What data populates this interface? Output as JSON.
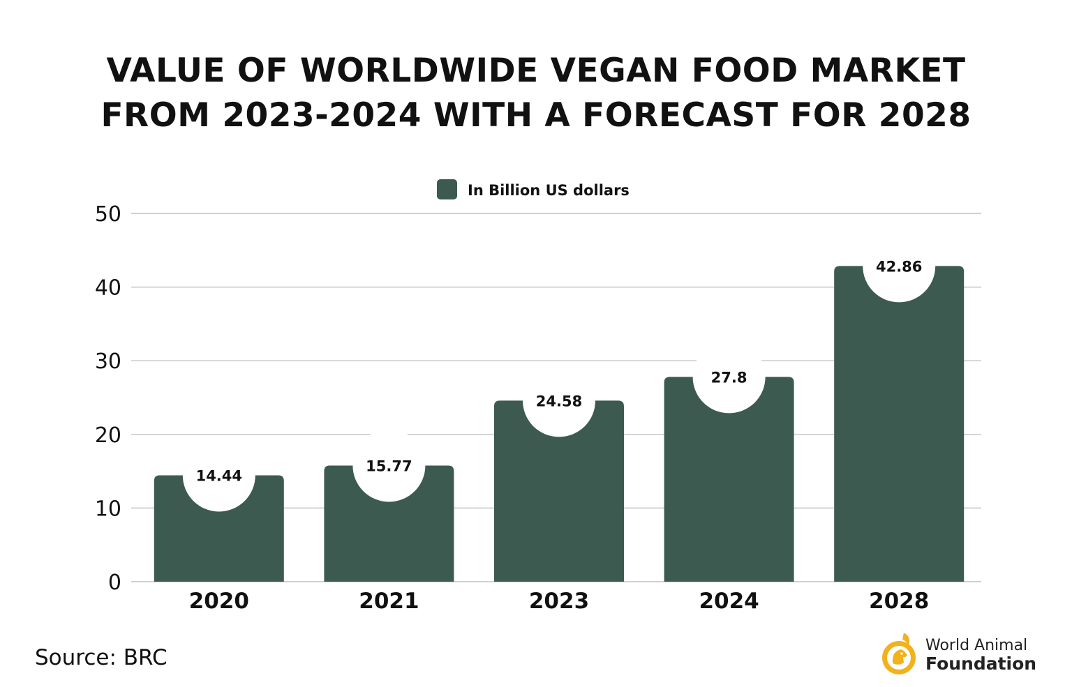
{
  "title_line1": "VALUE OF WORLDWIDE VEGAN FOOD MARKET",
  "title_line2": "FROM 2023-2024 WITH A FORECAST FOR 2028",
  "source": "Source: BRC",
  "brand": {
    "line1": "World Animal",
    "line2": "Foundation",
    "logo_icon": "dog-icon",
    "color": "#f2b21c"
  },
  "chart_data": {
    "type": "bar",
    "categories": [
      "2020",
      "2021",
      "2023",
      "2024",
      "2028"
    ],
    "series": [
      {
        "name": "In Billion US dollars",
        "values": [
          14.44,
          15.77,
          24.58,
          27.8,
          42.86
        ],
        "labels": [
          "14.44",
          "15.77",
          "24.58",
          "27.8",
          "42.86"
        ]
      }
    ],
    "ylim": [
      0,
      50
    ],
    "yticks": [
      0,
      10,
      20,
      30,
      40,
      50
    ],
    "xlabel": "",
    "ylabel": "",
    "legend_position": "top-center",
    "grid": true,
    "colors": {
      "bar": "#3c5a4f",
      "grid": "#b5b5b5",
      "label_circle": "#ffffff"
    }
  }
}
